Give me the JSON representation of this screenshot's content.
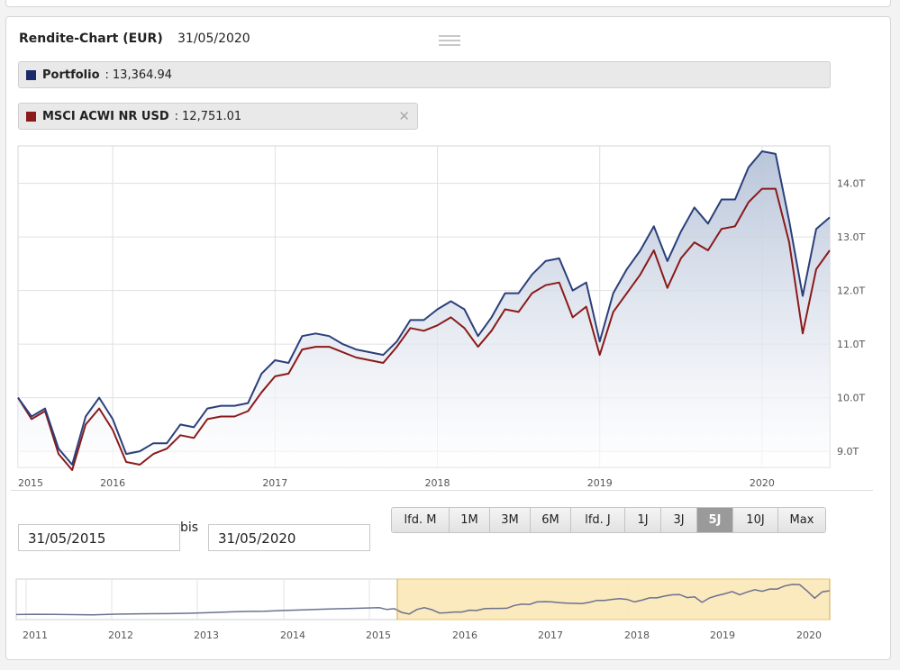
{
  "header": {
    "title": "Rendite-Chart (EUR)",
    "date": "31/05/2020"
  },
  "legend": [
    {
      "name": "Portfolio",
      "value": "13,364.94",
      "color": "#1a2a6c",
      "closable": false
    },
    {
      "name": "MSCI ACWI NR USD",
      "value": "12,751.01",
      "color": "#8b1a1a",
      "closable": true
    }
  ],
  "close_glyph": "✕",
  "range": {
    "from": "31/05/2015",
    "to": "31/05/2020",
    "bis_label": "bis"
  },
  "period_buttons": [
    {
      "label": "lfd. M",
      "active": false
    },
    {
      "label": "1M",
      "active": false
    },
    {
      "label": "3M",
      "active": false
    },
    {
      "label": "6M",
      "active": false
    },
    {
      "label": "lfd. J",
      "active": false
    },
    {
      "label": "1J",
      "active": false
    },
    {
      "label": "3J",
      "active": false
    },
    {
      "label": "5J",
      "active": true
    },
    {
      "label": "10J",
      "active": false
    },
    {
      "label": "Max",
      "active": false
    }
  ],
  "chart_data": {
    "type": "area",
    "x_start": "2015-05",
    "x_step": "month",
    "x_ticks": [
      "2015",
      "2016",
      "2017",
      "2018",
      "2019",
      "2020"
    ],
    "y_ticks": [
      9000,
      10000,
      11000,
      12000,
      13000,
      14000
    ],
    "y_tick_labels": [
      "9.0T",
      "10.0T",
      "11.0T",
      "12.0T",
      "13.0T",
      "14.0T"
    ],
    "ylim": [
      8700,
      14700
    ],
    "grid": true,
    "series": [
      {
        "name": "Portfolio",
        "color": "#2b3f7a",
        "values": [
          10000,
          9650,
          9800,
          9050,
          8750,
          9650,
          10000,
          9600,
          8950,
          9000,
          9150,
          9150,
          9500,
          9450,
          9800,
          9850,
          9850,
          9900,
          10450,
          10700,
          10650,
          11150,
          11200,
          11150,
          11000,
          10900,
          10850,
          10800,
          11050,
          11450,
          11450,
          11650,
          11800,
          11650,
          11150,
          11500,
          11950,
          11950,
          12300,
          12550,
          12600,
          12000,
          12150,
          11050,
          11950,
          12400,
          12750,
          13200,
          12550,
          13100,
          13550,
          13250,
          13700,
          13700,
          14300,
          14600,
          14550,
          13300,
          11900,
          13150,
          13364.94
        ]
      },
      {
        "name": "MSCI ACWI NR USD",
        "color": "#8b1a1a",
        "values": [
          10000,
          9600,
          9750,
          8950,
          8650,
          9500,
          9800,
          9400,
          8800,
          8750,
          8950,
          9050,
          9300,
          9250,
          9600,
          9650,
          9650,
          9750,
          10100,
          10400,
          10450,
          10900,
          10950,
          10950,
          10850,
          10750,
          10700,
          10650,
          10950,
          11300,
          11250,
          11350,
          11500,
          11300,
          10950,
          11250,
          11650,
          11600,
          11950,
          12100,
          12150,
          11500,
          11700,
          10800,
          11600,
          11950,
          12300,
          12750,
          12050,
          12600,
          12900,
          12750,
          13150,
          13200,
          13650,
          13900,
          13900,
          12900,
          11200,
          12400,
          12751.01
        ]
      }
    ],
    "navigator": {
      "x_ticks": [
        "2011",
        "2012",
        "2013",
        "2014",
        "2015",
        "2016",
        "2017",
        "2018",
        "2019",
        "2020"
      ],
      "selection": [
        "2015-05",
        "2020-05"
      ]
    }
  }
}
